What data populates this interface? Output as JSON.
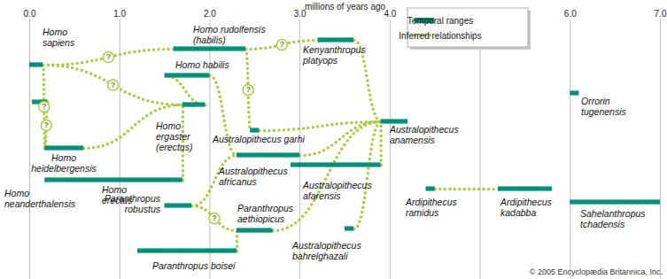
{
  "chart_data": {
    "type": "range",
    "x_label": "millions of years ago",
    "xlim": [
      0,
      7
    ],
    "xticks": [
      0,
      1,
      2,
      3,
      4,
      5,
      6,
      7
    ],
    "grid": true,
    "tick_labels": "x",
    "legend": "top-right",
    "caption": "© 2005 Encyclopædia Britannica, Inc.",
    "series": [
      {
        "name": "Temporal ranges",
        "type": "range",
        "color": "#00937a"
      },
      {
        "name": "Inferred relationships",
        "type": "link",
        "color": "#a6ce39",
        "line_style": "dotted"
      }
    ],
    "categories": [
      "Homo sapiens",
      "Homo neanderthalensis",
      "Homo heidelbergensis",
      "Homo erectus",
      "Homo ergaster (erectus)",
      "Homo rudolfensis (habilis)",
      "Homo habilis",
      "Kenyanthropus platyops",
      "Australopithecus garhi",
      "Australopithecus anamensis",
      "Australopithecus africanus",
      "Australopithecus afarensis",
      "Australopithecus bahrelghazali",
      "Paranthropus robustus",
      "Paranthropus aethiopicus",
      "Paranthropus boisei",
      "Ardipithecus ramidus",
      "Ardipithecus kadabba",
      "Orrorin tugenensis",
      "Sahelanthropus tchadensis"
    ],
    "values": [
      [
        0,
        0.15
      ],
      [
        0.03,
        0.2
      ],
      [
        0.17,
        0.6
      ],
      [
        0.17,
        1.7
      ],
      [
        1.7,
        1.95
      ],
      [
        1.6,
        2.4
      ],
      [
        1.5,
        2.0
      ],
      [
        3.2,
        3.6
      ],
      [
        2.45,
        2.55
      ],
      [
        3.9,
        4.2
      ],
      [
        2.3,
        3.0
      ],
      [
        2.9,
        3.9
      ],
      [
        3.5,
        3.6
      ],
      [
        1.5,
        1.8
      ],
      [
        2.3,
        2.7
      ],
      [
        1.2,
        2.3
      ],
      [
        4.4,
        4.5
      ],
      [
        5.2,
        5.8
      ],
      [
        6.0,
        6.1
      ],
      [
        6.0,
        7.0
      ]
    ],
    "relationships": [
      {
        "from": "Kenyanthropus platyops",
        "to": "Australopithecus anamensis"
      },
      {
        "from": "Australopithecus garhi",
        "to": "Australopithecus anamensis"
      },
      {
        "from": "Australopithecus africanus",
        "to": "Australopithecus anamensis"
      },
      {
        "from": "Australopithecus afarensis",
        "to": "Australopithecus anamensis"
      },
      {
        "from": "Australopithecus bahrelghazali",
        "to": "Australopithecus anamensis"
      },
      {
        "from": "Paranthropus aethiopicus",
        "to": "Australopithecus anamensis"
      },
      {
        "from": "Ardipithecus ramidus",
        "to": "Ardipithecus kadabba"
      },
      {
        "from": "Homo rudolfensis (habilis)",
        "to": "Kenyanthropus platyops",
        "label": "?"
      },
      {
        "from": "Homo rudolfensis (habilis)",
        "to": "Australopithecus garhi",
        "label": "?"
      },
      {
        "from": "Homo sapiens",
        "to": "Homo rudolfensis (habilis)",
        "label": "?"
      },
      {
        "from": "Homo sapiens",
        "to": "Homo heidelbergensis",
        "label": "?"
      },
      {
        "from": "Homo neanderthalensis",
        "to": "Homo heidelbergensis",
        "label": "?"
      },
      {
        "from": "Homo sapiens",
        "to": "Homo ergaster (erectus)",
        "label": "?"
      },
      {
        "from": "Homo heidelbergensis",
        "to": "Homo ergaster (erectus)"
      },
      {
        "from": "Homo erectus",
        "to": "Homo ergaster (erectus)"
      },
      {
        "from": "Homo ergaster (erectus)",
        "to": "Homo habilis"
      },
      {
        "from": "Paranthropus robustus",
        "to": "Paranthropus aethiopicus",
        "label": "?"
      },
      {
        "from": "Paranthropus boisei",
        "to": "Paranthropus aethiopicus"
      },
      {
        "from": "Paranthropus robustus",
        "to": "Australopithecus africanus"
      },
      {
        "from": "Homo habilis",
        "to": "Australopithecus africanus"
      }
    ]
  }
}
